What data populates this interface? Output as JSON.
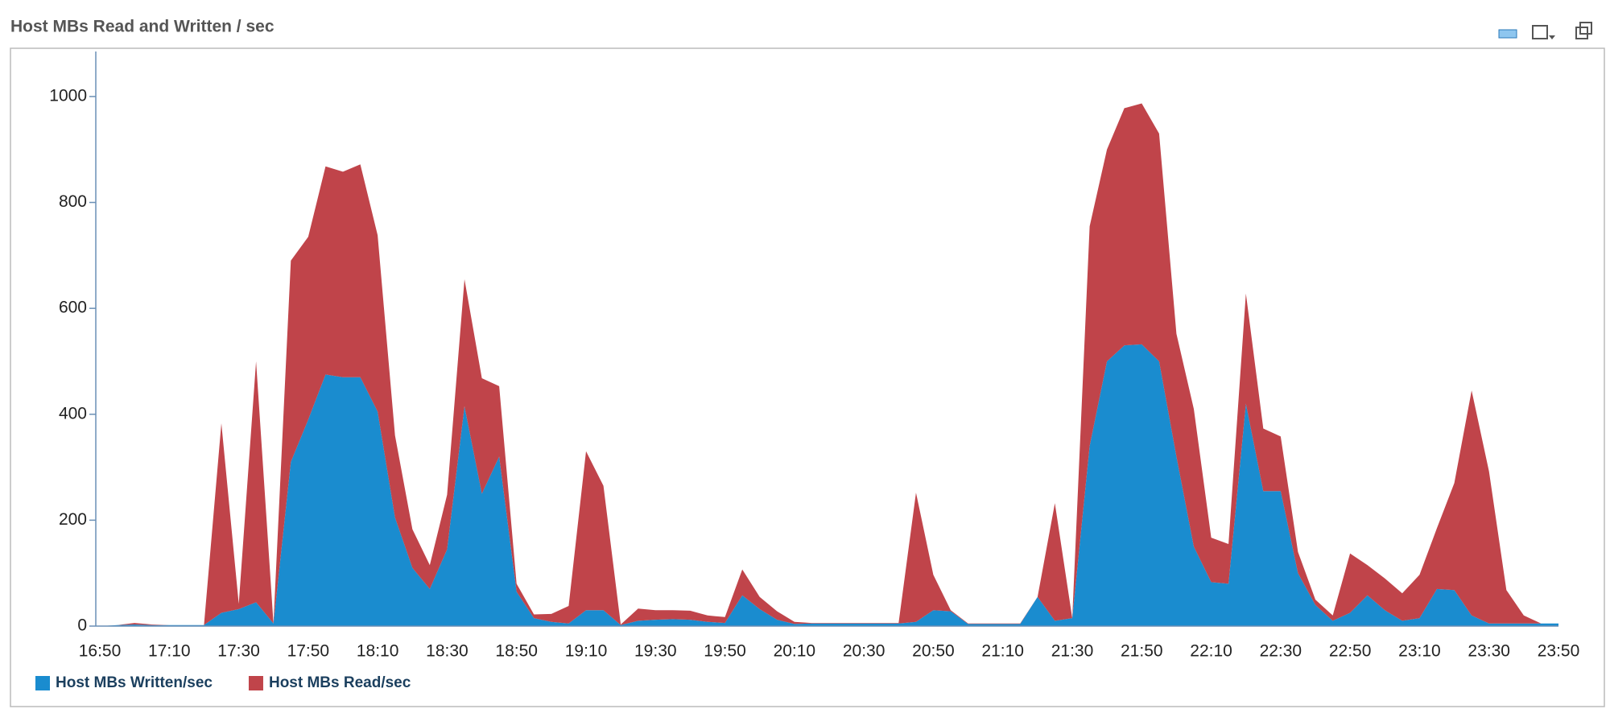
{
  "chart_data": {
    "type": "stacked_area",
    "title": "Host MBs Read and Written / sec",
    "categories": [
      "16:50",
      null,
      null,
      null,
      "17:10",
      null,
      null,
      null,
      "17:30",
      null,
      null,
      null,
      "17:50",
      null,
      null,
      null,
      "18:10",
      null,
      null,
      null,
      "18:30",
      null,
      null,
      null,
      "18:50",
      null,
      null,
      null,
      "19:10",
      null,
      null,
      null,
      "19:30",
      null,
      null,
      null,
      "19:50",
      null,
      null,
      null,
      "20:10",
      null,
      null,
      null,
      "20:30",
      null,
      null,
      null,
      "20:50",
      null,
      null,
      null,
      "21:10",
      null,
      null,
      null,
      "21:30",
      null,
      null,
      null,
      "21:50",
      null,
      null,
      null,
      "22:10",
      null,
      null,
      null,
      "22:30",
      null,
      null,
      null,
      "22:50",
      null,
      null,
      null,
      "23:10",
      null,
      null,
      null,
      "23:30",
      null,
      null,
      null,
      "23:50"
    ],
    "series": [
      {
        "name": "Host MBs Written/sec",
        "color": "#1a8ccf",
        "values": [
          0,
          2,
          3,
          2,
          2,
          2,
          2,
          25,
          32,
          45,
          5,
          310,
          390,
          475,
          470,
          470,
          405,
          205,
          110,
          70,
          145,
          415,
          250,
          320,
          65,
          15,
          8,
          5,
          30,
          30,
          2,
          10,
          12,
          13,
          12,
          8,
          6,
          58,
          32,
          12,
          4,
          5,
          5,
          5,
          5,
          5,
          5,
          8,
          30,
          28,
          4,
          4,
          4,
          4,
          55,
          10,
          15,
          340,
          500,
          530,
          532,
          500,
          320,
          150,
          83,
          80,
          420,
          255,
          255,
          100,
          40,
          10,
          25,
          58,
          30,
          10,
          15,
          70,
          68,
          20,
          5,
          5,
          5,
          5,
          5
        ]
      },
      {
        "name": "Host MBs Read/sec",
        "color": "#c0444a",
        "values": [
          0,
          0,
          3,
          1,
          0,
          0,
          0,
          358,
          10,
          455,
          0,
          380,
          345,
          393,
          388,
          402,
          333,
          155,
          73,
          45,
          103,
          240,
          218,
          133,
          15,
          7,
          15,
          33,
          300,
          235,
          1,
          23,
          18,
          17,
          17,
          12,
          11,
          49,
          23,
          16,
          4,
          1,
          1,
          1,
          1,
          1,
          1,
          244,
          67,
          2,
          1,
          1,
          1,
          1,
          0,
          222,
          0,
          415,
          400,
          448,
          455,
          430,
          232,
          260,
          84,
          75,
          208,
          118,
          103,
          40,
          10,
          10,
          112,
          57,
          60,
          52,
          82,
          115,
          202,
          425,
          287,
          63,
          15,
          0,
          0
        ]
      }
    ],
    "ylim": [
      0,
      1085
    ],
    "yticks": [
      0,
      200,
      400,
      600,
      800,
      1000
    ],
    "legend": "bottom-left"
  }
}
